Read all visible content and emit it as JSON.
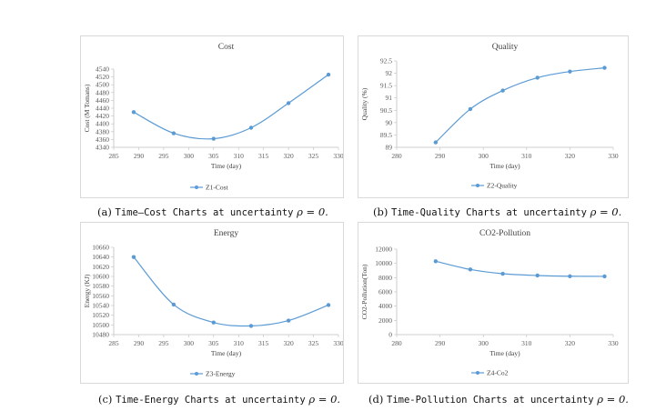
{
  "captions": [
    {
      "label": "(a)",
      "text": "Time—Cost Charts at uncertainty",
      "rho": "ρ = 0."
    },
    {
      "label": "(b)",
      "text": "Time-Quality Charts at uncertainty",
      "rho": "ρ = 0."
    },
    {
      "label": "(c)",
      "text": "Time-Energy Charts at uncertainty",
      "rho": "ρ = 0."
    },
    {
      "label": "(d)",
      "text": "Time-Pollution Charts at uncertainty",
      "rho": "ρ = 0."
    }
  ],
  "series_color": "#5b9bd5",
  "chart_data": [
    {
      "type": "line",
      "title": "Cost",
      "xlabel": "Time (day)",
      "ylabel": "Cost (M Tomans)",
      "xlim": [
        285,
        330
      ],
      "xticks": [
        285,
        290,
        295,
        300,
        305,
        310,
        315,
        320,
        325,
        330
      ],
      "ylim": [
        4340,
        4540
      ],
      "yticks": [
        4340,
        4360,
        4380,
        4400,
        4420,
        4440,
        4460,
        4480,
        4500,
        4520,
        4540
      ],
      "legend_position": "bottom",
      "series": [
        {
          "name": "Z1-Cost",
          "x": [
            289,
            297,
            305,
            312.5,
            320,
            328
          ],
          "y": [
            4430,
            4376,
            4362,
            4390,
            4453,
            4526
          ]
        }
      ]
    },
    {
      "type": "line",
      "title": "Quality",
      "xlabel": "Time (day)",
      "ylabel": "Quality (%)",
      "xlim": [
        280,
        330
      ],
      "xticks": [
        280,
        290,
        300,
        310,
        320,
        330
      ],
      "ylim": [
        89,
        92.5
      ],
      "yticks": [
        "89",
        "89.5",
        "90",
        "90.5",
        "91",
        "91.5",
        "92",
        "92.5"
      ],
      "legend_position": "bottom",
      "series": [
        {
          "name": "Z2-Quality",
          "x": [
            289,
            297,
            304.5,
            312.5,
            320,
            328
          ],
          "y": [
            89.2,
            90.55,
            91.3,
            91.82,
            92.07,
            92.22
          ]
        }
      ]
    },
    {
      "type": "line",
      "title": "Energy",
      "xlabel": "Time (day)",
      "ylabel": "Energy (KJ)",
      "xlim": [
        285,
        330
      ],
      "xticks": [
        285,
        290,
        295,
        300,
        305,
        310,
        315,
        320,
        325,
        330
      ],
      "ylim": [
        10480,
        10660
      ],
      "yticks": [
        10480,
        10500,
        10520,
        10540,
        10560,
        10580,
        10600,
        10620,
        10640,
        10660
      ],
      "legend_position": "bottom",
      "series": [
        {
          "name": "Z3-Energy",
          "x": [
            289,
            297,
            305,
            312.5,
            320,
            328
          ],
          "y": [
            10640,
            10542,
            10505,
            10498,
            10509,
            10541
          ]
        }
      ]
    },
    {
      "type": "line",
      "title": "CO2-Pollution",
      "xlabel": "Time (day)",
      "ylabel": "CO2-Pollution(Ton)",
      "xlim": [
        280,
        330
      ],
      "xticks": [
        280,
        290,
        300,
        310,
        320,
        330
      ],
      "ylim": [
        0,
        12000
      ],
      "yticks": [
        0,
        2000,
        4000,
        6000,
        8000,
        10000,
        12000
      ],
      "legend_position": "bottom",
      "series": [
        {
          "name": "Z4-Co2",
          "x": [
            289,
            297,
            304.5,
            312.5,
            320,
            328
          ],
          "y": [
            10300,
            9150,
            8550,
            8300,
            8200,
            8180
          ]
        }
      ]
    }
  ]
}
